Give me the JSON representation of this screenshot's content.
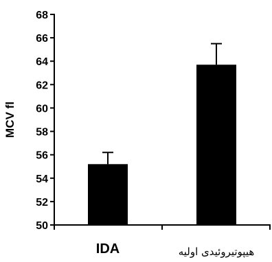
{
  "chart_data": {
    "type": "bar",
    "categories": [
      "IDA",
      "هیپوتیروئیدی اولیه"
    ],
    "values": [
      55.2,
      63.7
    ],
    "error_upper": [
      1.0,
      1.8
    ],
    "ylabel": "MCV fl",
    "xlabel": "",
    "ylim": [
      50,
      68
    ],
    "yticks": [
      50,
      52,
      54,
      56,
      58,
      60,
      62,
      64,
      66,
      68
    ],
    "grid": false,
    "bar_color": "#000000"
  }
}
